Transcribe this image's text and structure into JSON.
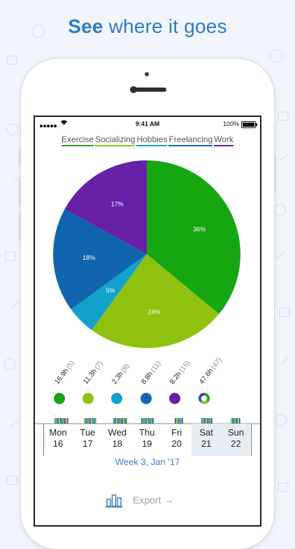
{
  "headline": {
    "bold": "See",
    "rest": "where it goes"
  },
  "status_bar": {
    "time": "9:41 AM",
    "battery": "100%",
    "wifi": "wifi-icon"
  },
  "legend": [
    {
      "label": "Exercise",
      "color": "#2aa316"
    },
    {
      "label": "Socializing",
      "color": "#8dc21d"
    },
    {
      "label": "Hobbies",
      "color": "#14a3c9"
    },
    {
      "label": "Freelancing",
      "color": "#1467ad"
    },
    {
      "label": "Work",
      "color": "#6b21a5"
    }
  ],
  "chart_data": {
    "type": "pie",
    "slices": [
      {
        "name": "Exercise",
        "value": 36,
        "label": "36%",
        "color": "#16a611"
      },
      {
        "name": "Socializing",
        "value": 24,
        "label": "24%",
        "color": "#8fc20f"
      },
      {
        "name": "Hobbies",
        "value": 5,
        "label": "5%",
        "color": "#12a2cc"
      },
      {
        "name": "Freelancing",
        "value": 18,
        "label": "18%",
        "color": "#1165ae"
      },
      {
        "name": "Work",
        "value": 17,
        "label": "17%",
        "color": "#6720a6"
      }
    ]
  },
  "stats": [
    {
      "hours": "16.9h",
      "count": "(5)",
      "color": "#16a611"
    },
    {
      "hours": "11.3h",
      "count": "(7)",
      "color": "#8fc20f"
    },
    {
      "hours": "2.3h",
      "count": "(9)",
      "color": "#12a2cc"
    },
    {
      "hours": "8.8h",
      "count": "(11)",
      "color": "#1165ae"
    },
    {
      "hours": "8.2h",
      "count": "(15)",
      "color": "#6720a6"
    },
    {
      "hours": "47.6h",
      "count": "(47)",
      "icon": "donut-total-icon"
    }
  ],
  "days": [
    {
      "name": "Mon",
      "date": "16",
      "weekend": false
    },
    {
      "name": "Tue",
      "date": "17",
      "weekend": false
    },
    {
      "name": "Wed",
      "date": "18",
      "weekend": false
    },
    {
      "name": "Thu",
      "date": "19",
      "weekend": false
    },
    {
      "name": "Fri",
      "date": "20",
      "weekend": false
    },
    {
      "name": "Sat",
      "date": "21",
      "weekend": true
    },
    {
      "name": "Sun",
      "date": "22",
      "weekend": true
    }
  ],
  "week_label": "Week 3, Jan '17",
  "toolbar": {
    "chart_icon": "bar-chart-icon",
    "export_label": "Export →"
  }
}
